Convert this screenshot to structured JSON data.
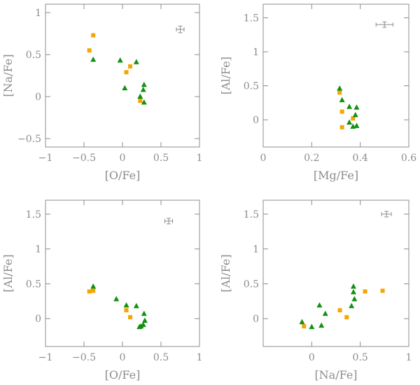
{
  "colors": {
    "square": "#f5a600",
    "triangle": "#129012",
    "axis": "#8c8c8c"
  },
  "chart_data": [
    {
      "type": "scatter",
      "id": "na-vs-o",
      "xlabel": "[O/Fe]",
      "ylabel": "[Na/Fe]",
      "xlim": [
        -1,
        1
      ],
      "ylim": [
        -0.6,
        1.1
      ],
      "xticks": [
        -1,
        -0.5,
        0,
        0.5,
        1
      ],
      "xticklabels": [
        "−1",
        "−0.5",
        "0",
        "0.5",
        "1"
      ],
      "yticks": [
        -0.5,
        0,
        0.5,
        1
      ],
      "yticklabels": [
        "−0.5",
        "0",
        "0.5",
        "1"
      ],
      "errorbar": {
        "x": 0.75,
        "y": 0.8,
        "dx": 0.05,
        "dy": 0.04
      },
      "series": [
        {
          "name": "squares",
          "marker": "square",
          "x": [
            -0.38,
            -0.43,
            0.1,
            0.05,
            0.23
          ],
          "y": [
            0.73,
            0.55,
            0.36,
            0.29,
            -0.05
          ]
        },
        {
          "name": "triangles",
          "marker": "triangle",
          "x": [
            -0.38,
            -0.03,
            0.18,
            0.03,
            0.28,
            0.27,
            0.23,
            0.28
          ],
          "y": [
            0.44,
            0.43,
            0.41,
            0.1,
            0.14,
            0.08,
            0.0,
            -0.07
          ]
        }
      ]
    },
    {
      "type": "scatter",
      "id": "al-vs-mg",
      "xlabel": "[Mg/Fe]",
      "ylabel": "[Al/Fe]",
      "xlim": [
        0,
        0.6
      ],
      "ylim": [
        -0.4,
        1.7
      ],
      "xticks": [
        0,
        0.2,
        0.4,
        0.6
      ],
      "xticklabels": [
        "0",
        "0.2",
        "0.4",
        "0.6"
      ],
      "yticks": [
        0,
        0.5,
        1,
        1.5
      ],
      "yticklabels": [
        "0",
        "0.5",
        "1",
        "1.5"
      ],
      "errorbar": {
        "x": 0.5,
        "y": 1.4,
        "dx": 0.035,
        "dy": 0.04
      },
      "series": [
        {
          "name": "squares",
          "marker": "square",
          "x": [
            0.315,
            0.325,
            0.37,
            0.325
          ],
          "y": [
            0.4,
            0.12,
            0.02,
            -0.11
          ]
        },
        {
          "name": "triangles",
          "marker": "triangle",
          "x": [
            0.315,
            0.325,
            0.355,
            0.385,
            0.38,
            0.355,
            0.37,
            0.385
          ],
          "y": [
            0.46,
            0.29,
            0.19,
            0.18,
            0.07,
            -0.04,
            -0.1,
            -0.09
          ]
        }
      ]
    },
    {
      "type": "scatter",
      "id": "al-vs-o",
      "xlabel": "[O/Fe]",
      "ylabel": "[Al/Fe]",
      "xlim": [
        -1,
        1
      ],
      "ylim": [
        -0.4,
        1.7
      ],
      "xticks": [
        -1,
        -0.5,
        0,
        0.5,
        1
      ],
      "xticklabels": [
        "−1",
        "−0.5",
        "0",
        "0.5",
        "1"
      ],
      "yticks": [
        0,
        0.5,
        1,
        1.5
      ],
      "yticklabels": [
        "0",
        "0.5",
        "1",
        "1.5"
      ],
      "errorbar": {
        "x": 0.6,
        "y": 1.4,
        "dx": 0.05,
        "dy": 0.04
      },
      "series": [
        {
          "name": "squares",
          "marker": "square",
          "x": [
            -0.43,
            -0.38,
            0.05,
            0.1
          ],
          "y": [
            0.39,
            0.4,
            0.12,
            0.02
          ]
        },
        {
          "name": "triangles",
          "marker": "triangle",
          "x": [
            -0.38,
            -0.08,
            0.05,
            0.18,
            0.28,
            0.29,
            0.27,
            0.22,
            0.24
          ],
          "y": [
            0.46,
            0.28,
            0.19,
            0.18,
            0.07,
            -0.03,
            -0.09,
            -0.12,
            -0.11
          ]
        }
      ]
    },
    {
      "type": "scatter",
      "id": "al-vs-na",
      "xlabel": "[Na/Fe]",
      "ylabel": "[Al/Fe]",
      "xlim": [
        -0.5,
        1
      ],
      "ylim": [
        -0.4,
        1.7
      ],
      "xticks": [
        0,
        0.5,
        1
      ],
      "xticklabels": [
        "0",
        "0.5",
        "1"
      ],
      "yticks": [
        0,
        0.5,
        1,
        1.5
      ],
      "yticklabels": [
        "0",
        "0.5",
        "1",
        "1.5"
      ],
      "errorbar": {
        "x": 0.77,
        "y": 1.5,
        "dx": 0.05,
        "dy": 0.04
      },
      "series": [
        {
          "name": "squares",
          "marker": "square",
          "x": [
            -0.08,
            0.29,
            0.36,
            0.55,
            0.73
          ],
          "y": [
            -0.11,
            0.12,
            0.02,
            0.39,
            0.4
          ]
        },
        {
          "name": "triangles",
          "marker": "triangle",
          "x": [
            -0.1,
            0.0,
            0.1,
            0.14,
            0.08,
            0.43,
            0.43,
            0.44,
            0.41
          ],
          "y": [
            -0.05,
            -0.12,
            -0.1,
            0.07,
            0.19,
            0.46,
            0.38,
            0.28,
            0.18
          ]
        }
      ]
    }
  ]
}
